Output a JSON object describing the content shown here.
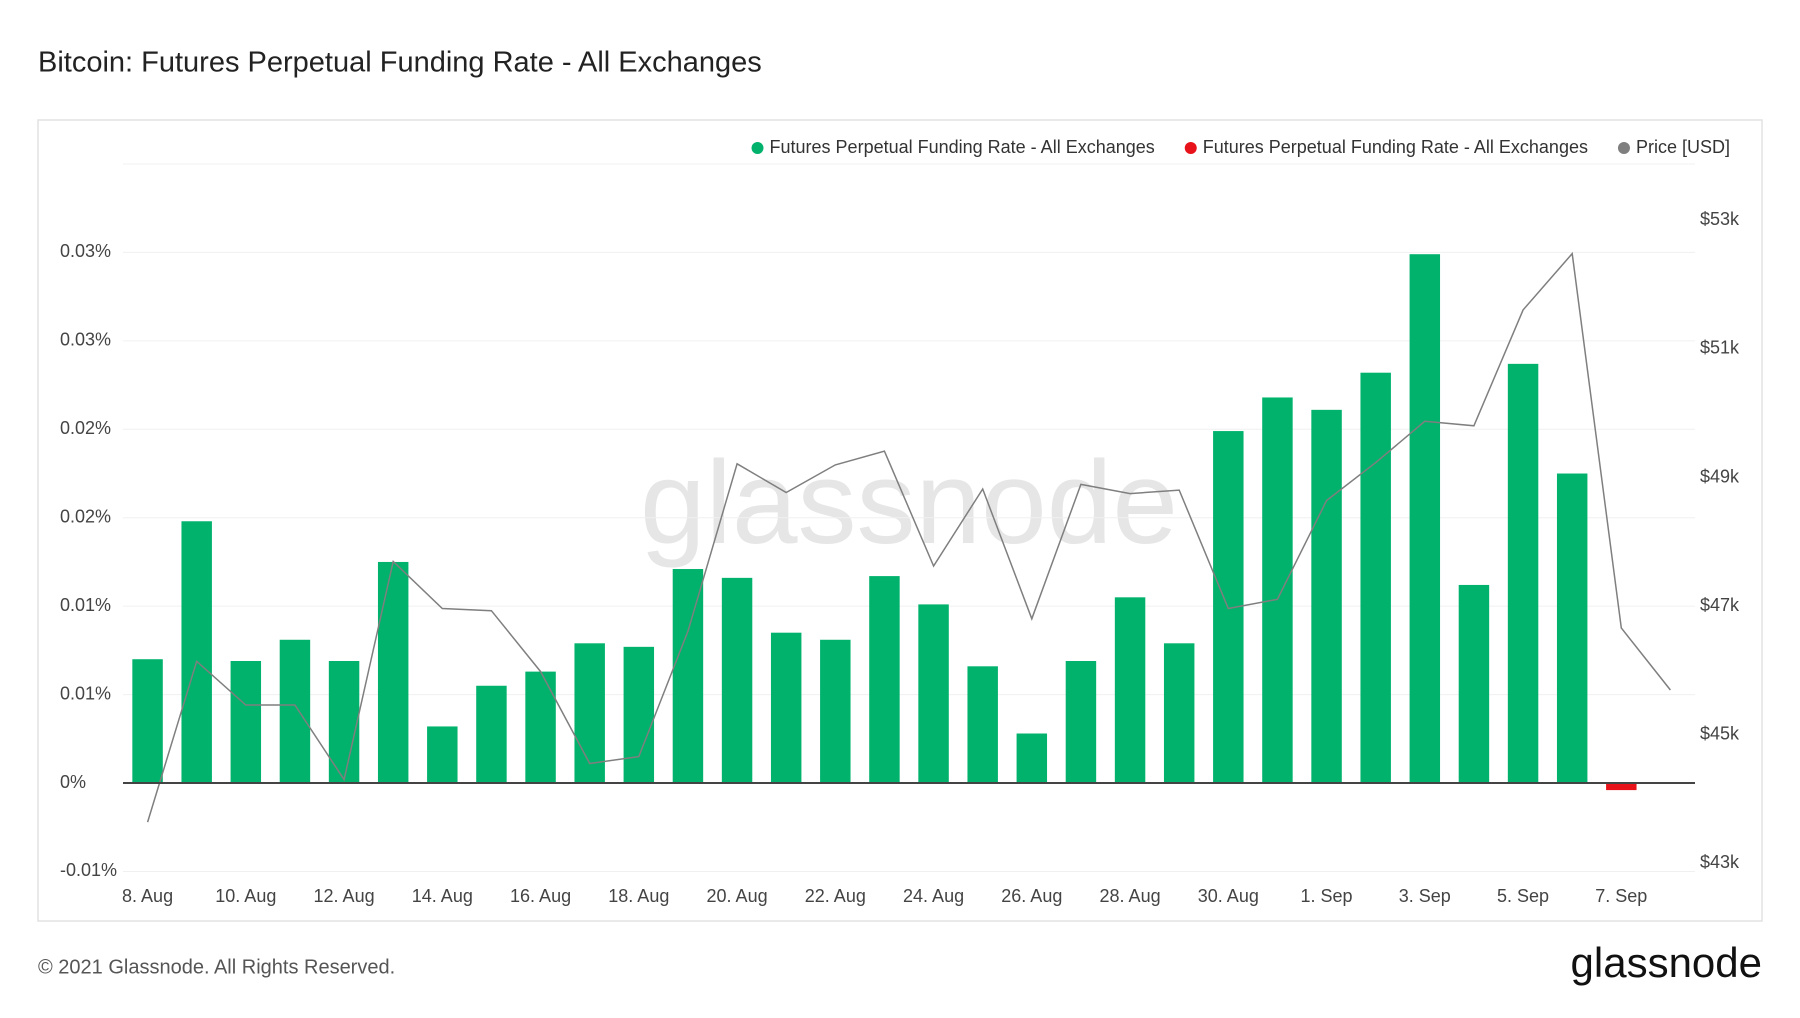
{
  "chart_data": {
    "type": "bar",
    "title": "Bitcoin: Futures Perpetual Funding Rate - All Exchanges",
    "watermark": "glassnode",
    "copyright": "© 2021 Glassnode. All Rights Reserved.",
    "logo": "glassnode",
    "categories": [
      "8. Aug",
      null,
      "10. Aug",
      null,
      "12. Aug",
      null,
      "14. Aug",
      null,
      "16. Aug",
      null,
      "18. Aug",
      null,
      "20. Aug",
      null,
      "22. Aug",
      null,
      "24. Aug",
      null,
      "26. Aug",
      null,
      "28. Aug",
      null,
      "30. Aug",
      null,
      "1. Sep",
      null,
      "3. Sep",
      null,
      "5. Sep",
      null,
      "7. Sep",
      null
    ],
    "series": [
      {
        "name": "Futures Perpetual Funding Rate - All Exchanges",
        "color": "#00b26c",
        "values": [
          0.007,
          0.0148,
          0.0069,
          0.0081,
          0.0069,
          0.0125,
          0.0032,
          0.0055,
          0.0063,
          0.0079,
          0.0077,
          0.0121,
          0.0116,
          0.0085,
          0.0081,
          0.0117,
          0.0101,
          0.0066,
          0.0028,
          0.0069,
          0.0105,
          0.0079,
          0.0199,
          0.0218,
          0.0211,
          0.0232,
          0.0299,
          0.0112,
          0.0237,
          0.0175,
          null,
          null
        ]
      },
      {
        "name": "Futures Perpetual Funding Rate - All Exchanges",
        "color": "#e8131a",
        "values": [
          null,
          null,
          null,
          null,
          null,
          null,
          null,
          null,
          null,
          null,
          null,
          null,
          null,
          null,
          null,
          null,
          null,
          null,
          null,
          null,
          null,
          null,
          null,
          null,
          null,
          null,
          null,
          null,
          null,
          null,
          -0.0004,
          null
        ]
      },
      {
        "name": "Price [USD]",
        "color": "#7f7f7f",
        "axis": "y2",
        "type": "line",
        "values": [
          43643,
          46143,
          45464,
          45464,
          44304,
          47696,
          46964,
          46929,
          45982,
          44554,
          44661,
          46607,
          49214,
          48768,
          49196,
          49411,
          47625,
          48821,
          46804,
          48893,
          48750,
          48804,
          46964,
          47107,
          48643,
          49232,
          49875,
          49804,
          51607,
          52482,
          46661,
          45696
        ]
      }
    ],
    "ylim": [
      -0.0052,
      0.035
    ],
    "yticks": [
      {
        "value": -0.005,
        "label": "-0.01%"
      },
      {
        "value": 0,
        "label": "0%"
      },
      {
        "value": 0.005,
        "label": "0.01%"
      },
      {
        "value": 0.01,
        "label": "0.01%"
      },
      {
        "value": 0.015,
        "label": "0.02%"
      },
      {
        "value": 0.02,
        "label": "0.02%"
      },
      {
        "value": 0.025,
        "label": "0.03%"
      },
      {
        "value": 0.03,
        "label": "0.03%"
      }
    ],
    "y2lim": [
      42820,
      53875
    ],
    "y2ticks": [
      {
        "value": 43000,
        "label": "$43k"
      },
      {
        "value": 45000,
        "label": "$45k"
      },
      {
        "value": 47000,
        "label": "$47k"
      },
      {
        "value": 49000,
        "label": "$49k"
      },
      {
        "value": 51000,
        "label": "$51k"
      },
      {
        "value": 53000,
        "label": "$53k"
      }
    ],
    "grid": true
  }
}
